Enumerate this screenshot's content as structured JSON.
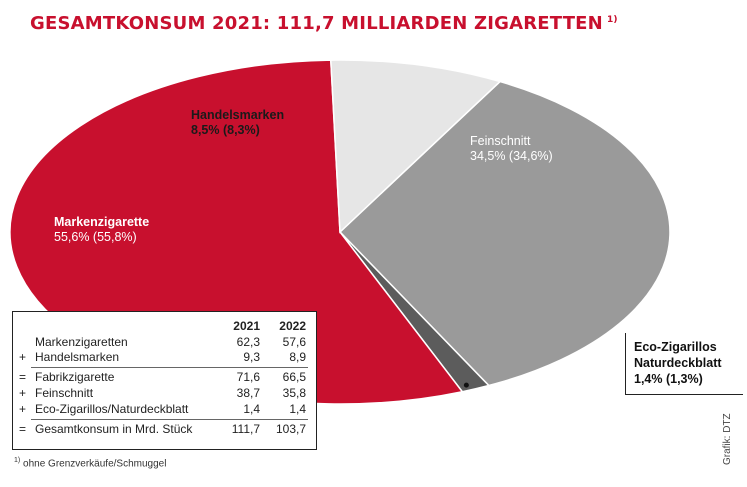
{
  "title": "GESAMTKONSUM 2021: 111,7 MILLIARDEN ZIGARETTEN",
  "title_footnote_mark": "1)",
  "chart_data": {
    "type": "pie",
    "title": "GESAMTKONSUM 2021: 111,7 MILLIARDEN ZIGARETTEN",
    "slices": [
      {
        "name": "Markenzigarette",
        "value": 55.6,
        "value_prev": 55.8,
        "label_value": "55,6% (55,8%)",
        "color": "#c8102e"
      },
      {
        "name": "Handelsmarken",
        "value": 8.5,
        "value_prev": 8.3,
        "label_value": "8,5% (8,3%)",
        "color": "#e6e6e6"
      },
      {
        "name": "Feinschnitt",
        "value": 34.5,
        "value_prev": 34.6,
        "label_value": "34,5% (34,6%)",
        "color": "#9a9a9a"
      },
      {
        "name": "Eco-Zigarillos Naturdeckblatt",
        "value": 1.4,
        "value_prev": 1.3,
        "label_value": "1,4% (1,3%)",
        "color": "#5c5c5c"
      }
    ]
  },
  "eco_label": {
    "line1": "Eco-Zigarillos",
    "line2": "Naturdeckblatt",
    "line3": "1,4% (1,3%)"
  },
  "table": {
    "headers": [
      "2021",
      "2022"
    ],
    "rows": [
      {
        "op": "",
        "label": "Markenzigaretten",
        "v2021": "62,3",
        "v2022": "57,6"
      },
      {
        "op": "+",
        "label": "Handelsmarken",
        "v2021": "9,3",
        "v2022": "8,9"
      },
      {
        "op": "=",
        "label": "Fabrikzigarette",
        "v2021": "71,6",
        "v2022": "66,5"
      },
      {
        "op": "+",
        "label": "Feinschnitt",
        "v2021": "38,7",
        "v2022": "35,8"
      },
      {
        "op": "+",
        "label": "Eco-Zigarillos/Naturdeckblatt",
        "v2021": "1,4",
        "v2022": "1,4"
      },
      {
        "op": "=",
        "label": "Gesamtkonsum in Mrd. Stück",
        "v2021": "111,7",
        "v2022": "103,7"
      }
    ]
  },
  "footnote": {
    "mark": "1)",
    "text": "ohne Grenzverkäufe/Schmuggel"
  },
  "credit": "Grafik: DTZ"
}
